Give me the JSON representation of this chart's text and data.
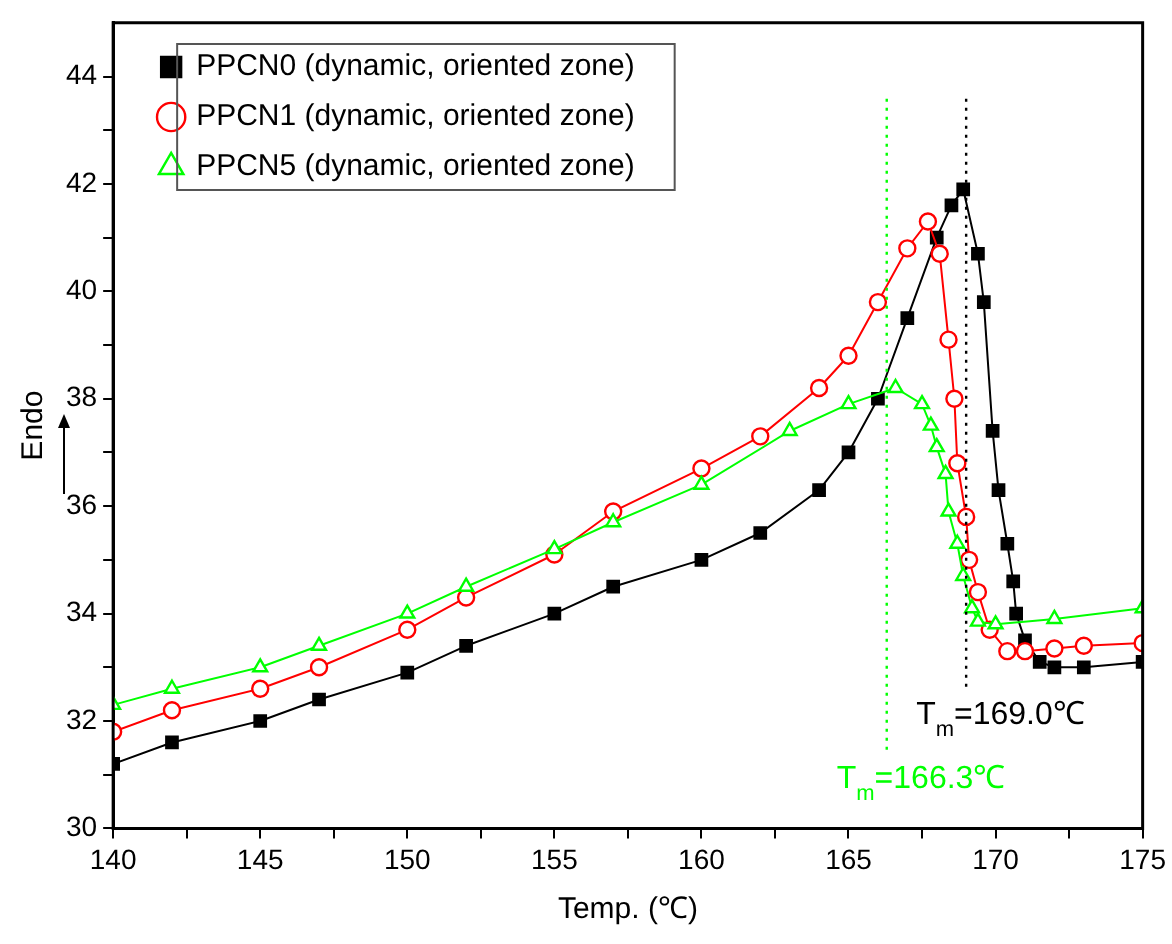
{
  "chart_data": {
    "type": "line",
    "xlabel": "Temp. (℃)",
    "ylabel": "Endo",
    "xlim": [
      140,
      175
    ],
    "xticks": [
      140,
      {
        "value": 142.5,
        "label": null
      },
      145,
      {
        "value": 147.5,
        "label": null
      },
      150,
      {
        "value": 152.5,
        "label": null
      },
      155,
      {
        "value": 157.5,
        "label": null
      },
      160,
      {
        "value": 162.5,
        "label": null
      },
      165,
      {
        "value": 167.5,
        "label": null
      },
      170,
      {
        "value": 172.5,
        "label": null
      },
      175
    ],
    "ylim": [
      30,
      45
    ],
    "yticks": [
      30,
      {
        "value": 31,
        "label": null
      },
      32,
      {
        "value": 33,
        "label": null
      },
      34,
      {
        "value": 35,
        "label": null
      },
      36,
      {
        "value": 37,
        "label": null
      },
      38,
      {
        "value": 39,
        "label": null
      },
      40,
      {
        "value": 41,
        "label": null
      },
      42,
      {
        "value": 43,
        "label": null
      },
      44
    ],
    "grid": false,
    "legend": "top left",
    "series": [
      {
        "name": "PPCN0 (dynamic, oriented zone)",
        "color": "#000000",
        "marker": "square",
        "x": [
          140,
          142,
          145,
          147,
          150,
          152,
          155,
          157,
          160,
          162,
          164,
          165,
          166,
          167,
          168,
          168.5,
          168.9,
          169.4,
          169.6,
          169.9,
          170.1,
          170.4,
          170.6,
          170.7,
          171,
          171.5,
          172,
          173,
          175
        ],
        "values": [
          31.2,
          31.6,
          32.0,
          32.4,
          32.9,
          33.4,
          34.0,
          34.5,
          35.0,
          35.5,
          36.3,
          37.0,
          38.0,
          39.5,
          41.0,
          41.6,
          41.9,
          40.7,
          39.8,
          37.4,
          36.3,
          35.3,
          34.6,
          34.0,
          33.5,
          33.1,
          33.0,
          33.0,
          33.1
        ]
      },
      {
        "name": "PPCN1 (dynamic, oriented zone)",
        "color": "#ff0000",
        "marker": "circle",
        "x": [
          140,
          142,
          145,
          147,
          150,
          152,
          155,
          157,
          160,
          162,
          164,
          165,
          166,
          167,
          167.7,
          168.1,
          168.4,
          168.6,
          168.7,
          169.0,
          169.1,
          169.4,
          169.8,
          170.4,
          171,
          172,
          173,
          175
        ],
        "values": [
          31.8,
          32.2,
          32.6,
          33.0,
          33.7,
          34.3,
          35.1,
          35.9,
          36.7,
          37.3,
          38.2,
          38.8,
          39.8,
          40.8,
          41.3,
          40.7,
          39.1,
          38.0,
          36.8,
          35.8,
          35.0,
          34.4,
          33.7,
          33.3,
          33.3,
          33.35,
          33.4,
          33.45
        ]
      },
      {
        "name": "PPCN5 (dynamic, oriented zone)",
        "color": "#00ff00",
        "marker": "triangle",
        "x": [
          140,
          142,
          145,
          147,
          150,
          152,
          155,
          157,
          160,
          163,
          165,
          166.6,
          167.5,
          167.8,
          168.0,
          168.3,
          168.4,
          168.7,
          168.9,
          169.2,
          169.4,
          170,
          172,
          175
        ],
        "values": [
          32.3,
          32.6,
          33.0,
          33.4,
          34.0,
          34.5,
          35.2,
          35.7,
          36.4,
          37.4,
          37.9,
          38.2,
          37.9,
          37.5,
          37.1,
          36.6,
          35.9,
          35.3,
          34.7,
          34.1,
          33.85,
          33.8,
          33.9,
          34.1
        ]
      }
    ],
    "ref_lines": [
      {
        "axis": "x",
        "value": 169.0,
        "label": "T$_{m}$=169.0℃",
        "color": "#000000",
        "line_style": "dotted"
      },
      {
        "axis": "x",
        "value": 166.3,
        "label": "T$_{m}$=166.3℃",
        "color": "#00ff00",
        "line_style": "dotted"
      }
    ]
  }
}
